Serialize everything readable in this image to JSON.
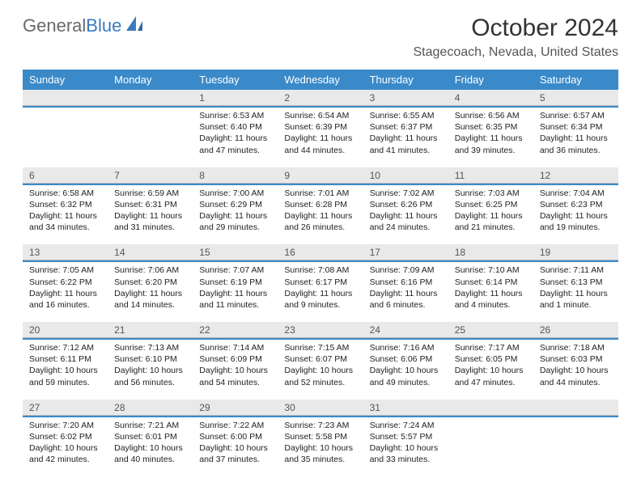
{
  "brand": {
    "name1": "General",
    "name2": "Blue"
  },
  "title": "October 2024",
  "location": "Stagecoach, Nevada, United States",
  "colors": {
    "header_bg": "#3a8ac9",
    "header_text": "#ffffff",
    "daynum_bg": "#e9e9e9",
    "sep": "#3a8ac9",
    "brand_gray": "#6a6a6a",
    "brand_blue": "#3a7bbf",
    "text": "#222222",
    "location_text": "#555555"
  },
  "typography": {
    "month_title_fontsize": 30,
    "location_fontsize": 16,
    "dayheader_fontsize": 13,
    "daynum_fontsize": 12,
    "cell_fontsize": 10.5
  },
  "day_names": [
    "Sunday",
    "Monday",
    "Tuesday",
    "Wednesday",
    "Thursday",
    "Friday",
    "Saturday"
  ],
  "weeks": [
    [
      {
        "num": "",
        "sunrise": "",
        "sunset": "",
        "daylight": ""
      },
      {
        "num": "",
        "sunrise": "",
        "sunset": "",
        "daylight": ""
      },
      {
        "num": "1",
        "sunrise": "Sunrise: 6:53 AM",
        "sunset": "Sunset: 6:40 PM",
        "daylight": "Daylight: 11 hours and 47 minutes."
      },
      {
        "num": "2",
        "sunrise": "Sunrise: 6:54 AM",
        "sunset": "Sunset: 6:39 PM",
        "daylight": "Daylight: 11 hours and 44 minutes."
      },
      {
        "num": "3",
        "sunrise": "Sunrise: 6:55 AM",
        "sunset": "Sunset: 6:37 PM",
        "daylight": "Daylight: 11 hours and 41 minutes."
      },
      {
        "num": "4",
        "sunrise": "Sunrise: 6:56 AM",
        "sunset": "Sunset: 6:35 PM",
        "daylight": "Daylight: 11 hours and 39 minutes."
      },
      {
        "num": "5",
        "sunrise": "Sunrise: 6:57 AM",
        "sunset": "Sunset: 6:34 PM",
        "daylight": "Daylight: 11 hours and 36 minutes."
      }
    ],
    [
      {
        "num": "6",
        "sunrise": "Sunrise: 6:58 AM",
        "sunset": "Sunset: 6:32 PM",
        "daylight": "Daylight: 11 hours and 34 minutes."
      },
      {
        "num": "7",
        "sunrise": "Sunrise: 6:59 AM",
        "sunset": "Sunset: 6:31 PM",
        "daylight": "Daylight: 11 hours and 31 minutes."
      },
      {
        "num": "8",
        "sunrise": "Sunrise: 7:00 AM",
        "sunset": "Sunset: 6:29 PM",
        "daylight": "Daylight: 11 hours and 29 minutes."
      },
      {
        "num": "9",
        "sunrise": "Sunrise: 7:01 AM",
        "sunset": "Sunset: 6:28 PM",
        "daylight": "Daylight: 11 hours and 26 minutes."
      },
      {
        "num": "10",
        "sunrise": "Sunrise: 7:02 AM",
        "sunset": "Sunset: 6:26 PM",
        "daylight": "Daylight: 11 hours and 24 minutes."
      },
      {
        "num": "11",
        "sunrise": "Sunrise: 7:03 AM",
        "sunset": "Sunset: 6:25 PM",
        "daylight": "Daylight: 11 hours and 21 minutes."
      },
      {
        "num": "12",
        "sunrise": "Sunrise: 7:04 AM",
        "sunset": "Sunset: 6:23 PM",
        "daylight": "Daylight: 11 hours and 19 minutes."
      }
    ],
    [
      {
        "num": "13",
        "sunrise": "Sunrise: 7:05 AM",
        "sunset": "Sunset: 6:22 PM",
        "daylight": "Daylight: 11 hours and 16 minutes."
      },
      {
        "num": "14",
        "sunrise": "Sunrise: 7:06 AM",
        "sunset": "Sunset: 6:20 PM",
        "daylight": "Daylight: 11 hours and 14 minutes."
      },
      {
        "num": "15",
        "sunrise": "Sunrise: 7:07 AM",
        "sunset": "Sunset: 6:19 PM",
        "daylight": "Daylight: 11 hours and 11 minutes."
      },
      {
        "num": "16",
        "sunrise": "Sunrise: 7:08 AM",
        "sunset": "Sunset: 6:17 PM",
        "daylight": "Daylight: 11 hours and 9 minutes."
      },
      {
        "num": "17",
        "sunrise": "Sunrise: 7:09 AM",
        "sunset": "Sunset: 6:16 PM",
        "daylight": "Daylight: 11 hours and 6 minutes."
      },
      {
        "num": "18",
        "sunrise": "Sunrise: 7:10 AM",
        "sunset": "Sunset: 6:14 PM",
        "daylight": "Daylight: 11 hours and 4 minutes."
      },
      {
        "num": "19",
        "sunrise": "Sunrise: 7:11 AM",
        "sunset": "Sunset: 6:13 PM",
        "daylight": "Daylight: 11 hours and 1 minute."
      }
    ],
    [
      {
        "num": "20",
        "sunrise": "Sunrise: 7:12 AM",
        "sunset": "Sunset: 6:11 PM",
        "daylight": "Daylight: 10 hours and 59 minutes."
      },
      {
        "num": "21",
        "sunrise": "Sunrise: 7:13 AM",
        "sunset": "Sunset: 6:10 PM",
        "daylight": "Daylight: 10 hours and 56 minutes."
      },
      {
        "num": "22",
        "sunrise": "Sunrise: 7:14 AM",
        "sunset": "Sunset: 6:09 PM",
        "daylight": "Daylight: 10 hours and 54 minutes."
      },
      {
        "num": "23",
        "sunrise": "Sunrise: 7:15 AM",
        "sunset": "Sunset: 6:07 PM",
        "daylight": "Daylight: 10 hours and 52 minutes."
      },
      {
        "num": "24",
        "sunrise": "Sunrise: 7:16 AM",
        "sunset": "Sunset: 6:06 PM",
        "daylight": "Daylight: 10 hours and 49 minutes."
      },
      {
        "num": "25",
        "sunrise": "Sunrise: 7:17 AM",
        "sunset": "Sunset: 6:05 PM",
        "daylight": "Daylight: 10 hours and 47 minutes."
      },
      {
        "num": "26",
        "sunrise": "Sunrise: 7:18 AM",
        "sunset": "Sunset: 6:03 PM",
        "daylight": "Daylight: 10 hours and 44 minutes."
      }
    ],
    [
      {
        "num": "27",
        "sunrise": "Sunrise: 7:20 AM",
        "sunset": "Sunset: 6:02 PM",
        "daylight": "Daylight: 10 hours and 42 minutes."
      },
      {
        "num": "28",
        "sunrise": "Sunrise: 7:21 AM",
        "sunset": "Sunset: 6:01 PM",
        "daylight": "Daylight: 10 hours and 40 minutes."
      },
      {
        "num": "29",
        "sunrise": "Sunrise: 7:22 AM",
        "sunset": "Sunset: 6:00 PM",
        "daylight": "Daylight: 10 hours and 37 minutes."
      },
      {
        "num": "30",
        "sunrise": "Sunrise: 7:23 AM",
        "sunset": "Sunset: 5:58 PM",
        "daylight": "Daylight: 10 hours and 35 minutes."
      },
      {
        "num": "31",
        "sunrise": "Sunrise: 7:24 AM",
        "sunset": "Sunset: 5:57 PM",
        "daylight": "Daylight: 10 hours and 33 minutes."
      },
      {
        "num": "",
        "sunrise": "",
        "sunset": "",
        "daylight": ""
      },
      {
        "num": "",
        "sunrise": "",
        "sunset": "",
        "daylight": ""
      }
    ]
  ]
}
